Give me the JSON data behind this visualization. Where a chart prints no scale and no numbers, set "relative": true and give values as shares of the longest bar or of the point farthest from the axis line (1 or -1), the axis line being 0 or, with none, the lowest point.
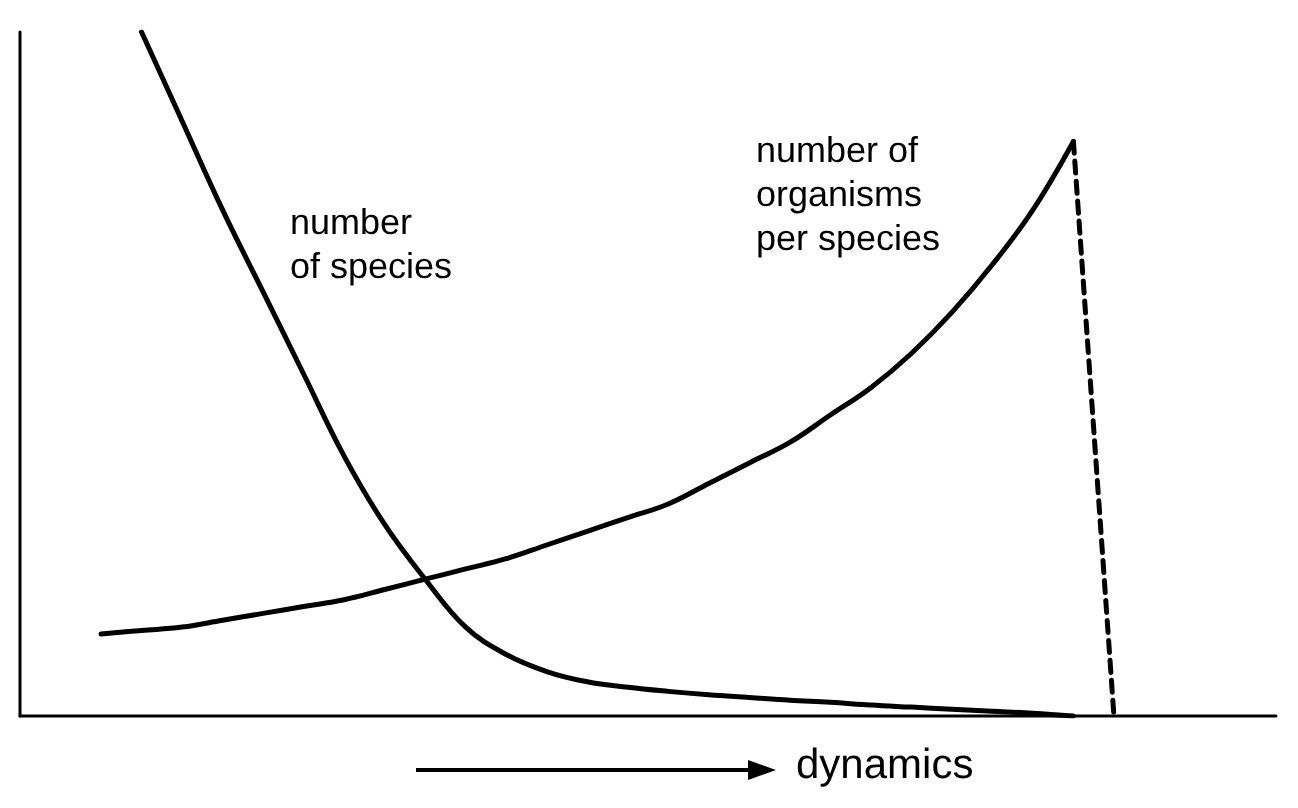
{
  "chart_data": {
    "type": "line",
    "relative": true,
    "xlabel": "dynamics",
    "grid": false,
    "legend": false,
    "marker": "none",
    "categories": [
      null,
      null,
      null,
      null,
      null,
      null,
      null,
      null,
      null,
      null,
      null,
      null,
      null,
      null,
      null,
      null,
      null,
      null,
      null,
      null,
      null,
      null,
      null,
      null,
      null,
      null,
      null,
      null,
      null,
      null,
      null,
      null
    ],
    "series": [
      {
        "name": "number\nof species",
        "color": "#000000",
        "line_style": "solid",
        "values": [
          null,
          null,
          null,
          1.0,
          0.87,
          0.74,
          0.62,
          0.5,
          0.38,
          0.28,
          0.2,
          0.13,
          0.09,
          0.065,
          0.05,
          0.042,
          0.036,
          0.031,
          0.027,
          0.023,
          0.02,
          0.016,
          0.013,
          0.01,
          0.007,
          0.004,
          0.0,
          null,
          null,
          null,
          null,
          null
        ]
      },
      {
        "name": "number of\norganisms\nper species",
        "color": "#000000",
        "line_style": "solid",
        "values": [
          null,
          null,
          0.12,
          0.125,
          0.13,
          0.14,
          0.15,
          0.16,
          0.17,
          0.185,
          0.2,
          0.215,
          0.23,
          0.25,
          0.27,
          0.29,
          0.31,
          0.34,
          0.37,
          0.4,
          0.44,
          0.48,
          0.53,
          0.59,
          0.66,
          0.74,
          0.84,
          null,
          null,
          null,
          null,
          null
        ]
      },
      {
        "color": "#000000",
        "line_style": "dashed",
        "values": [
          null,
          null,
          null,
          null,
          null,
          null,
          null,
          null,
          null,
          null,
          null,
          null,
          null,
          null,
          null,
          null,
          null,
          null,
          null,
          null,
          null,
          null,
          null,
          null,
          null,
          null,
          0.84,
          0.0,
          null,
          null,
          null,
          null
        ]
      }
    ]
  }
}
